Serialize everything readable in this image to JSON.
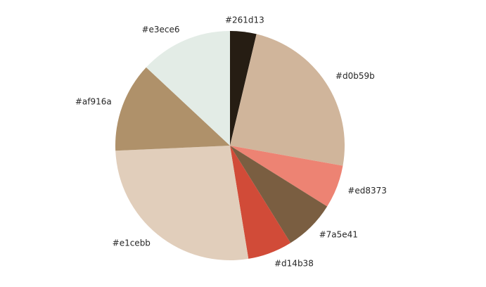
{
  "chart_data": {
    "type": "pie",
    "title": "",
    "start_angle_deg": 90,
    "direction": "clockwise",
    "slices": [
      {
        "label": "#261d13",
        "value": 3.9,
        "color": "#261d13"
      },
      {
        "label": "#d0b59b",
        "value": 25.3,
        "color": "#d0b59b"
      },
      {
        "label": "#ed8373",
        "value": 6.4,
        "color": "#ed8373"
      },
      {
        "label": "#7a5e41",
        "value": 7.6,
        "color": "#7a5e41"
      },
      {
        "label": "#d14b38",
        "value": 6.6,
        "color": "#d14b38"
      },
      {
        "label": "#e1cebb",
        "value": 28.2,
        "color": "#e1cebb"
      },
      {
        "label": "#af916a",
        "value": 13.3,
        "color": "#af916a"
      },
      {
        "label": "#e3ece6",
        "value": 13.7,
        "color": "#e3ece6"
      }
    ]
  }
}
